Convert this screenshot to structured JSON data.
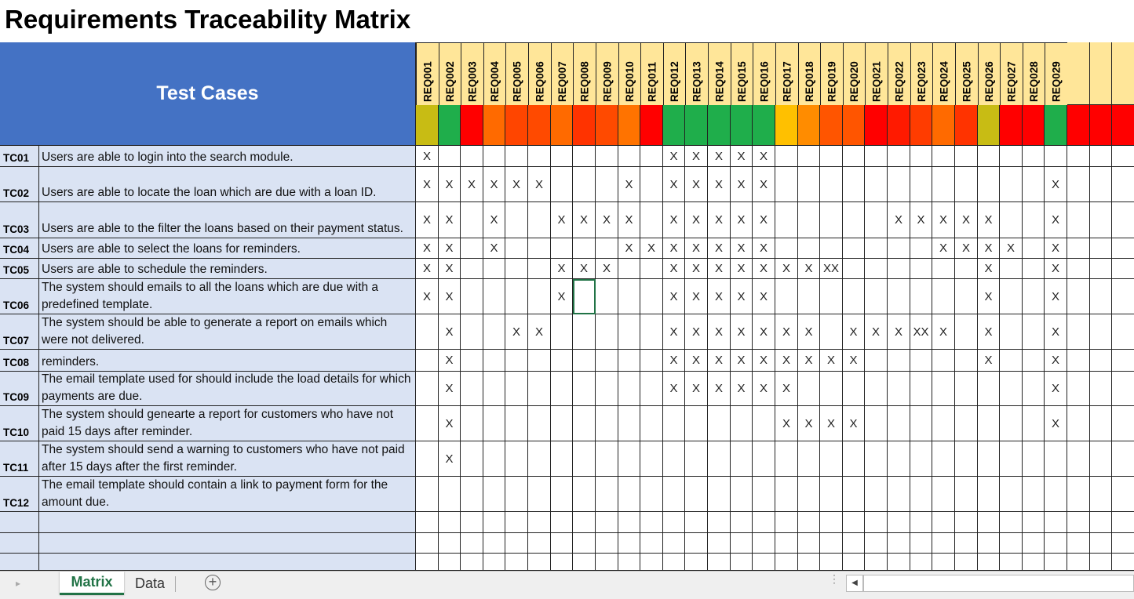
{
  "title": "Requirements Traceability Matrix",
  "header": {
    "test_cases": "Test Cases"
  },
  "requirements": [
    {
      "id": "REQ001",
      "color": "#c8bc14"
    },
    {
      "id": "REQ002",
      "color": "#1fae4b"
    },
    {
      "id": "REQ003",
      "color": "#ff0000"
    },
    {
      "id": "REQ004",
      "color": "#ff6a00"
    },
    {
      "id": "REQ005",
      "color": "#ff4500"
    },
    {
      "id": "REQ006",
      "color": "#ff4a00"
    },
    {
      "id": "REQ007",
      "color": "#ff6a00"
    },
    {
      "id": "REQ008",
      "color": "#ff3300"
    },
    {
      "id": "REQ009",
      "color": "#ff4a00"
    },
    {
      "id": "REQ010",
      "color": "#ff7300"
    },
    {
      "id": "REQ011",
      "color": "#ff0000"
    },
    {
      "id": "REQ012",
      "color": "#1fae4b"
    },
    {
      "id": "REQ013",
      "color": "#1fae4b"
    },
    {
      "id": "REQ014",
      "color": "#1fae4b"
    },
    {
      "id": "REQ015",
      "color": "#1fae4b"
    },
    {
      "id": "REQ016",
      "color": "#1fae4b"
    },
    {
      "id": "REQ017",
      "color": "#ffc000"
    },
    {
      "id": "REQ018",
      "color": "#ff8c00"
    },
    {
      "id": "REQ019",
      "color": "#ff5500"
    },
    {
      "id": "REQ020",
      "color": "#ff5500"
    },
    {
      "id": "REQ021",
      "color": "#ff0000"
    },
    {
      "id": "REQ022",
      "color": "#ff1a00"
    },
    {
      "id": "REQ023",
      "color": "#ff3c00"
    },
    {
      "id": "REQ024",
      "color": "#ff6a00"
    },
    {
      "id": "REQ025",
      "color": "#ff3300"
    },
    {
      "id": "REQ026",
      "color": "#c8bc14"
    },
    {
      "id": "REQ027",
      "color": "#ff0000"
    },
    {
      "id": "REQ028",
      "color": "#ff0000"
    },
    {
      "id": "REQ029",
      "color": "#1fae4b"
    }
  ],
  "extra_column_colors": [
    "#ff0000",
    "#ff0000",
    "#ff0000"
  ],
  "test_cases": [
    {
      "id": "TC01",
      "description": "Users are able to login into the search module.",
      "cells": [
        "X",
        null,
        null,
        null,
        null,
        null,
        null,
        null,
        null,
        null,
        null,
        "X",
        "X",
        "X",
        "X",
        "X",
        null,
        null,
        null,
        null,
        null,
        null,
        null,
        null,
        null,
        null,
        null,
        null,
        null
      ]
    },
    {
      "id": "TC02",
      "description": "Users are able to locate the loan which are due with a loan ID.",
      "cells": [
        "X",
        "X",
        "X",
        "X",
        "X",
        "X",
        null,
        null,
        null,
        "X",
        null,
        "X",
        "X",
        "X",
        "X",
        "X",
        null,
        null,
        null,
        null,
        null,
        null,
        null,
        null,
        null,
        null,
        null,
        null,
        "X"
      ]
    },
    {
      "id": "TC03",
      "description": "Users are able to the filter the loans based on their payment status.",
      "cells": [
        "X",
        "X",
        null,
        "X",
        null,
        null,
        "X",
        "X",
        "X",
        "X",
        null,
        "X",
        "X",
        "X",
        "X",
        "X",
        null,
        null,
        null,
        null,
        null,
        "X",
        "X",
        "X",
        "X",
        "X",
        null,
        null,
        "X"
      ]
    },
    {
      "id": "TC04",
      "description": "Users are able to select the loans for reminders.",
      "cells": [
        "X",
        "X",
        null,
        "X",
        null,
        null,
        null,
        null,
        null,
        "X",
        "X",
        "X",
        "X",
        "X",
        "X",
        "X",
        null,
        null,
        null,
        null,
        null,
        null,
        null,
        "X",
        "X",
        "X",
        "X",
        null,
        "X"
      ]
    },
    {
      "id": "TC05",
      "description": "Users are able to schedule the reminders.",
      "cells": [
        "X",
        "X",
        null,
        null,
        null,
        null,
        "X",
        "X",
        "X",
        null,
        null,
        "X",
        "X",
        "X",
        "X",
        "X",
        "X",
        "X",
        "XX",
        null,
        null,
        null,
        null,
        null,
        null,
        "X",
        null,
        null,
        "X"
      ]
    },
    {
      "id": "TC06",
      "description": "The system should emails to all the loans which are due with a predefined template.",
      "cells": [
        "X",
        "X",
        null,
        null,
        null,
        null,
        "X",
        null,
        null,
        null,
        null,
        "X",
        "X",
        "X",
        "X",
        "X",
        null,
        null,
        null,
        null,
        null,
        null,
        null,
        null,
        null,
        "X",
        null,
        null,
        "X"
      ]
    },
    {
      "id": "TC07",
      "description": "The system should be able to generate a report on emails which were not delivered.",
      "cells": [
        null,
        "X",
        null,
        null,
        "X",
        "X",
        null,
        null,
        null,
        null,
        null,
        "X",
        "X",
        "X",
        "X",
        "X",
        "X",
        "X",
        null,
        "X",
        "X",
        "X",
        "XX",
        "X",
        null,
        "X",
        null,
        null,
        "X"
      ]
    },
    {
      "id": "TC08",
      "description": "reminders.",
      "cells": [
        null,
        "X",
        null,
        null,
        null,
        null,
        null,
        null,
        null,
        null,
        null,
        "X",
        "X",
        "X",
        "X",
        "X",
        "X",
        "X",
        "X",
        "X",
        null,
        null,
        null,
        null,
        null,
        "X",
        null,
        null,
        "X"
      ]
    },
    {
      "id": "TC09",
      "description": "The email template used for should include the load details for which payments are due.",
      "cells": [
        null,
        "X",
        null,
        null,
        null,
        null,
        null,
        null,
        null,
        null,
        null,
        "X",
        "X",
        "X",
        "X",
        "X",
        "X",
        null,
        null,
        null,
        null,
        null,
        null,
        null,
        null,
        null,
        null,
        null,
        "X"
      ]
    },
    {
      "id": "TC10",
      "description": "The system should genearte a report for customers who have not paid 15 days after reminder.",
      "cells": [
        null,
        "X",
        null,
        null,
        null,
        null,
        null,
        null,
        null,
        null,
        null,
        null,
        null,
        null,
        null,
        null,
        "X",
        "X",
        "X",
        "X",
        null,
        null,
        null,
        null,
        null,
        null,
        null,
        null,
        "X"
      ]
    },
    {
      "id": "TC11",
      "description": "The system should send a warning to customers who have not paid after 15 days after the first reminder.",
      "cells": [
        null,
        "X",
        null,
        null,
        null,
        null,
        null,
        null,
        null,
        null,
        null,
        null,
        null,
        null,
        null,
        null,
        null,
        null,
        null,
        null,
        null,
        null,
        null,
        null,
        null,
        null,
        null,
        null,
        null
      ]
    },
    {
      "id": "TC12",
      "description": "The email template should contain a link to payment form for the amount due.",
      "cells": [
        null,
        null,
        null,
        null,
        null,
        null,
        null,
        null,
        null,
        null,
        null,
        null,
        null,
        null,
        null,
        null,
        null,
        null,
        null,
        null,
        null,
        null,
        null,
        null,
        null,
        null,
        null,
        null,
        null
      ]
    }
  ],
  "tabs": [
    "Matrix",
    "Data"
  ]
}
